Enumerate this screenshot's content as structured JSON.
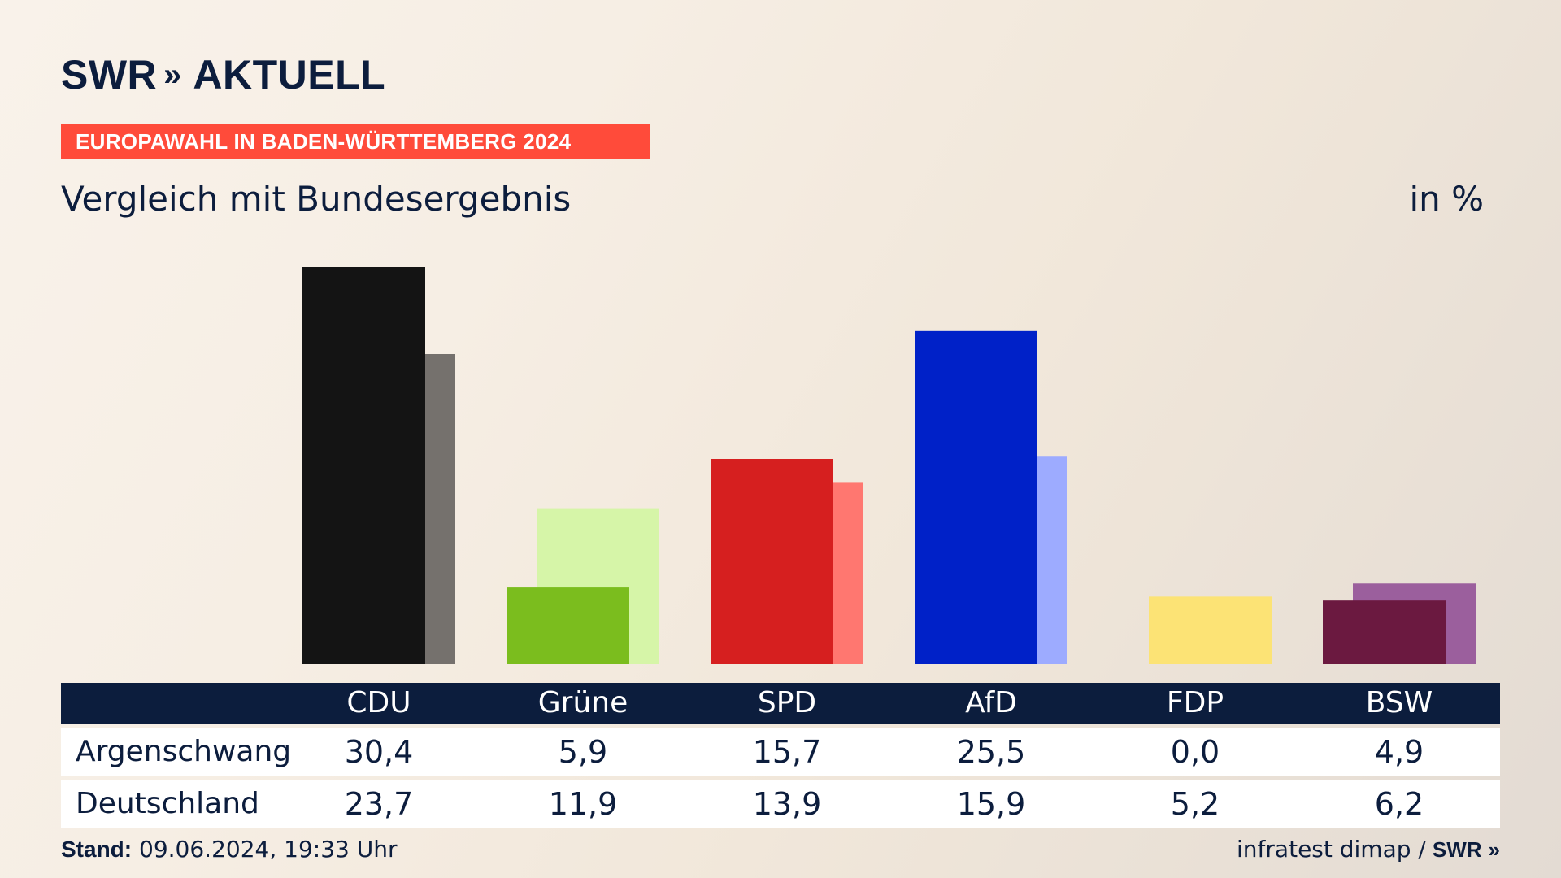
{
  "brand": {
    "logo_text": "SWR",
    "logo_chevrons": "»",
    "logo_section": "AKTUELL"
  },
  "banner": "EUROPAWAHL IN BADEN-WÜRTTEMBERG 2024",
  "subtitle": "Vergleich mit Bundesergebnis",
  "unit": "in %",
  "table": {
    "rows": [
      {
        "label": "Argenschwang",
        "values": [
          "30,4",
          "5,9",
          "15,7",
          "25,5",
          "0,0",
          "4,9"
        ]
      },
      {
        "label": "Deutschland",
        "values": [
          "23,7",
          "11,9",
          "13,9",
          "15,9",
          "5,2",
          "6,2"
        ]
      }
    ]
  },
  "footer": {
    "stand_label": "Stand:",
    "stand_value": "09.06.2024, 19:33 Uhr",
    "source": "infratest dimap /",
    "source_logo": "SWR",
    "source_logo_chevrons": "»"
  },
  "colors": {
    "banner": "#ff4b3a",
    "navy": "#0c1d3d"
  },
  "chart_data": {
    "type": "bar",
    "categories": [
      "CDU",
      "Grüne",
      "SPD",
      "AfD",
      "FDP",
      "BSW"
    ],
    "series": [
      {
        "name": "Argenschwang",
        "values": [
          30.4,
          5.9,
          15.7,
          25.5,
          0.0,
          4.9
        ],
        "colors": [
          "#141414",
          "#7bbd1e",
          "#d61f1f",
          "#0021c8",
          "#fce375",
          "#6b1940"
        ]
      },
      {
        "name": "Deutschland",
        "values": [
          23.7,
          11.9,
          13.9,
          15.9,
          5.2,
          6.2
        ],
        "colors": [
          "#75716d",
          "#d6f5a8",
          "#ff7770",
          "#9dabff",
          "#fce375",
          "#9b5f9d"
        ]
      }
    ],
    "ylim": [
      0,
      30.4
    ],
    "grid": false,
    "legend": "table-below"
  }
}
